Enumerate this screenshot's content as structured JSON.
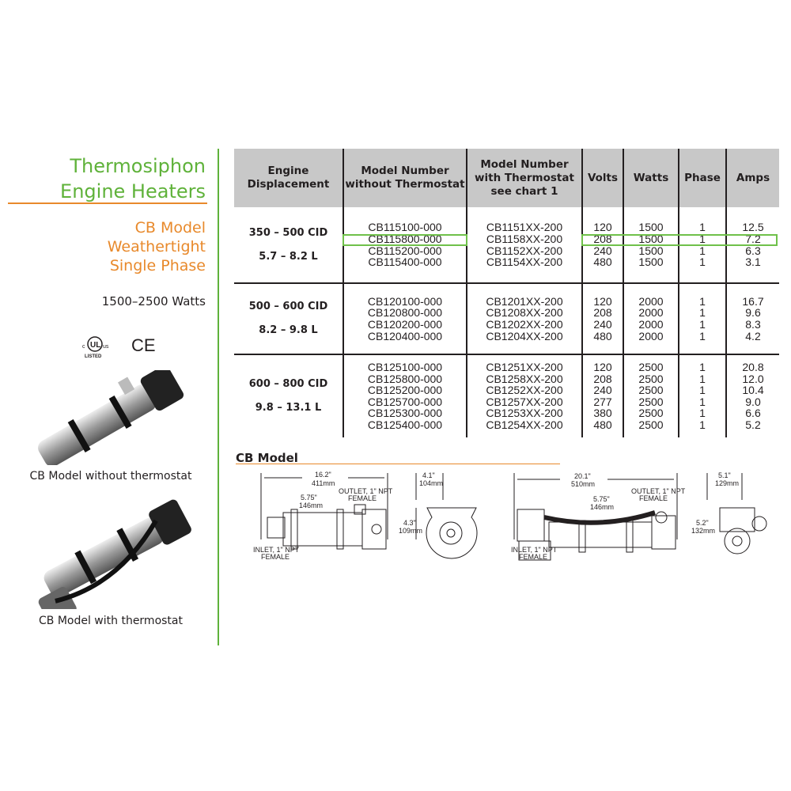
{
  "title": [
    "Thermosiphon",
    "Engine Heaters"
  ],
  "subtitle": [
    "CB Model",
    "Weathertight",
    "Single Phase"
  ],
  "watts_range": "1500–2500 Watts",
  "certifications": {
    "ul": "UL",
    "ul_c": "c",
    "ul_us": "us",
    "ul_listed": "LISTED",
    "ce": "CE"
  },
  "images": [
    {
      "caption": "CB Model without thermostat"
    },
    {
      "caption": "CB Model with thermostat"
    }
  ],
  "colors": {
    "green": "#5fb23a",
    "orange": "#e8892b",
    "header_gray": "#c8c8c8",
    "highlight": "#6fc04a"
  },
  "table": {
    "headers": [
      "Engine Displacement",
      "Model Number without Thermostat",
      "Model Number with Thermostat see chart 1",
      "Volts",
      "Watts",
      "Phase",
      "Amps"
    ],
    "groups": [
      {
        "cid": "350 – 500 CID",
        "liters": "5.7 – 8.2 L",
        "rows": [
          [
            "CB115100-000",
            "CB1151XX-200",
            "120",
            "1500",
            "1",
            "12.5"
          ],
          [
            "CB115800-000",
            "CB1158XX-200",
            "208",
            "1500",
            "1",
            "7.2"
          ],
          [
            "CB115200-000",
            "CB1152XX-200",
            "240",
            "1500",
            "1",
            "6.3"
          ],
          [
            "CB115400-000",
            "CB1154XX-200",
            "480",
            "1500",
            "1",
            "3.1"
          ]
        ]
      },
      {
        "cid": "500 – 600 CID",
        "liters": "8.2 – 9.8 L",
        "rows": [
          [
            "CB120100-000",
            "CB1201XX-200",
            "120",
            "2000",
            "1",
            "16.7"
          ],
          [
            "CB120800-000",
            "CB1208XX-200",
            "208",
            "2000",
            "1",
            "9.6"
          ],
          [
            "CB120200-000",
            "CB1202XX-200",
            "240",
            "2000",
            "1",
            "8.3"
          ],
          [
            "CB120400-000",
            "CB1204XX-200",
            "480",
            "2000",
            "1",
            "4.2"
          ]
        ]
      },
      {
        "cid": "600 – 800 CID",
        "liters": "9.8 – 13.1 L",
        "rows": [
          [
            "CB125100-000",
            "CB1251XX-200",
            "120",
            "2500",
            "1",
            "20.8"
          ],
          [
            "CB125800-000",
            "CB1258XX-200",
            "208",
            "2500",
            "1",
            "12.0"
          ],
          [
            "CB125200-000",
            "CB1252XX-200",
            "240",
            "2500",
            "1",
            "10.4"
          ],
          [
            "CB125700-000",
            "CB1257XX-200",
            "277",
            "2500",
            "1",
            "9.0"
          ],
          [
            "CB125300-000",
            "CB1253XX-200",
            "380",
            "2500",
            "1",
            "6.6"
          ],
          [
            "CB125400-000",
            "CB1254XX-200",
            "480",
            "2500",
            "1",
            "5.2"
          ]
        ]
      }
    ],
    "highlighted_row": "CB115800-000"
  },
  "drawings": {
    "heading": "CB Model",
    "d1": {
      "length_in": "16.2\"",
      "length_mm": "411mm",
      "spacing_in": "5.75\"",
      "spacing_mm": "146mm",
      "outlet": "OUTLET, 1\" NPT",
      "outlet2": "FEMALE",
      "inlet": "INLET, 1\" NPT",
      "inlet2": "FEMALE"
    },
    "e1": {
      "width_in": "4.1\"",
      "width_mm": "104mm",
      "height_in": "4.3\"",
      "height_mm": "109mm"
    },
    "d2": {
      "length_in": "20.1\"",
      "length_mm": "510mm",
      "spacing_in": "5.75\"",
      "spacing_mm": "146mm",
      "outlet": "OUTLET, 1\" NPT",
      "outlet2": "FEMALE",
      "inlet": "INLET, 1\" NPT",
      "inlet2": "FEMALE"
    },
    "e2": {
      "width_in": "5.1\"",
      "width_mm": "129mm",
      "height_in": "5.2\"",
      "height_mm": "132mm"
    }
  }
}
